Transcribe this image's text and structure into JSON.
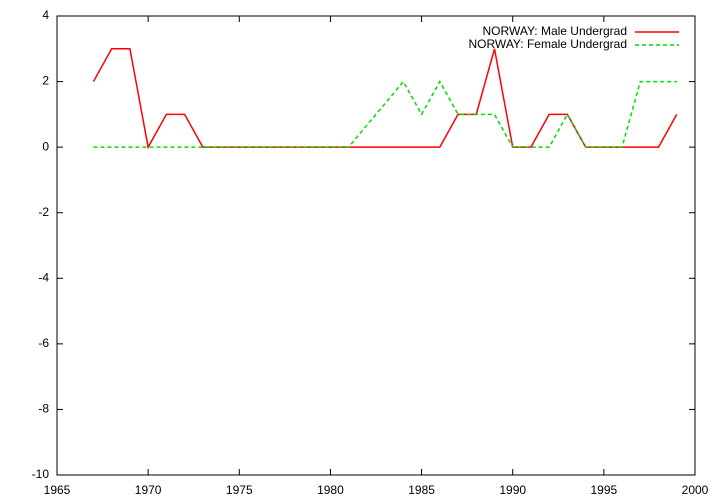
{
  "chart_data": {
    "type": "line",
    "x": [
      1967,
      1968,
      1969,
      1970,
      1971,
      1972,
      1973,
      1974,
      1975,
      1976,
      1977,
      1978,
      1979,
      1980,
      1981,
      1982,
      1983,
      1984,
      1985,
      1986,
      1987,
      1988,
      1989,
      1990,
      1991,
      1992,
      1993,
      1994,
      1995,
      1996,
      1997,
      1998,
      1999
    ],
    "series": [
      {
        "name": "NORWAY: Male Undergrad",
        "color": "#ff0000",
        "dash": false,
        "values": [
          2,
          3,
          3,
          0,
          1,
          1,
          0,
          0,
          0,
          0,
          0,
          0,
          0,
          0,
          0,
          0,
          0,
          0,
          0,
          0,
          1,
          1,
          3,
          0,
          0,
          1,
          1,
          0,
          0,
          0,
          0,
          0,
          1
        ]
      },
      {
        "name": "NORWAY: Female Undergrad",
        "color": "#00dd00",
        "dash": true,
        "values": [
          0,
          0,
          0,
          0,
          0,
          0,
          0,
          0,
          0,
          0,
          0,
          0,
          0,
          0,
          0,
          0.67,
          1.33,
          2,
          1,
          2,
          1,
          1,
          1,
          0,
          0,
          0,
          1,
          0,
          0,
          0,
          2,
          2,
          2
        ]
      }
    ],
    "xlim": [
      1965,
      2000
    ],
    "xticks": [
      1965,
      1970,
      1975,
      1980,
      1985,
      1990,
      1995,
      2000
    ],
    "ylim": [
      -10,
      4
    ],
    "yticks": [
      -10,
      -8,
      -6,
      -4,
      -2,
      0,
      2,
      4
    ],
    "legend": "top-right"
  }
}
